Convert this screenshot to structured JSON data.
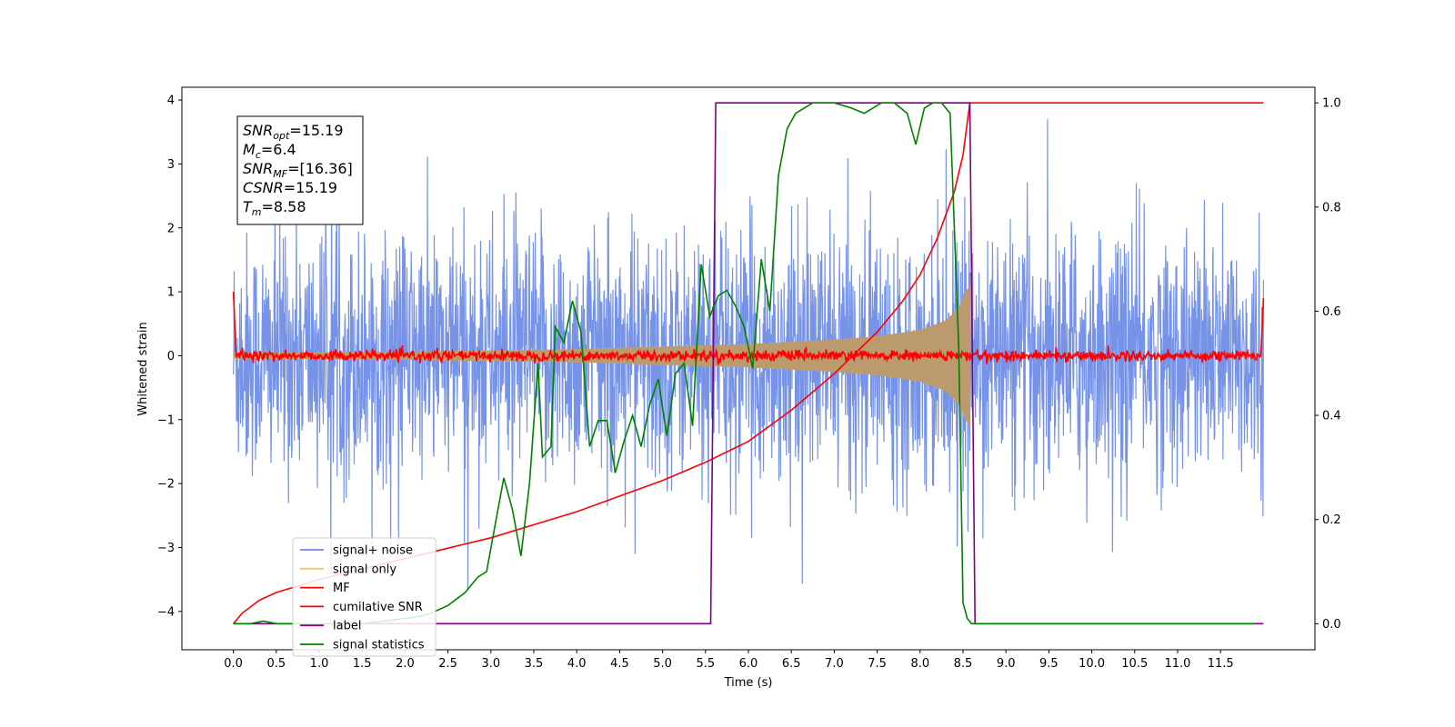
{
  "chart_data": {
    "type": "line",
    "title": "",
    "xlabel": "Time (s)",
    "ylabel": "Whitened strain",
    "ylabel_right": "",
    "xlim": [
      -0.6,
      12.6
    ],
    "ylim": [
      -4.6,
      4.2
    ],
    "ylim_right": [
      -0.05,
      1.03
    ],
    "x_ticks": [
      0.0,
      0.5,
      1.0,
      1.5,
      2.0,
      2.5,
      3.0,
      3.5,
      4.0,
      4.5,
      5.0,
      5.5,
      6.0,
      6.5,
      7.0,
      7.5,
      8.0,
      8.5,
      9.0,
      9.5,
      10.0,
      10.5,
      11.0,
      11.5
    ],
    "x_tick_labels": [
      "0.0",
      "0.5",
      "1.0",
      "1.5",
      "2.0",
      "2.5",
      "3.0",
      "3.5",
      "4.0",
      "4.5",
      "5.0",
      "5.5",
      "6.0",
      "6.5",
      "7.0",
      "7.5",
      "8.0",
      "8.5",
      "9.0",
      "9.5",
      "10.0",
      "10.5",
      "11.0",
      "11.5"
    ],
    "y_ticks": [
      -4,
      -3,
      -2,
      -1,
      0,
      1,
      2,
      3,
      4
    ],
    "y_tick_labels": [
      "−4",
      "−3",
      "−2",
      "−1",
      "0",
      "1",
      "2",
      "3",
      "4"
    ],
    "y_right_ticks": [
      0.0,
      0.2,
      0.4,
      0.6,
      0.8,
      1.0
    ],
    "y_right_tick_labels": [
      "0.0",
      "0.2",
      "0.4",
      "0.6",
      "0.8",
      "1.0"
    ],
    "grid": false,
    "legend_position": "lower-left",
    "annotation": {
      "lines": [
        {
          "sym": "SNR",
          "sub": "opt",
          "value": "=15.19"
        },
        {
          "sym": "M",
          "sub": "c",
          "value": "=6.4"
        },
        {
          "sym": "SNR",
          "sub": "MF",
          "value": "=[16.36]"
        },
        {
          "sym": "CSNR",
          "sub": "",
          "value": "=15.19"
        },
        {
          "sym": "T",
          "sub": "m",
          "value": "=8.58"
        }
      ]
    },
    "series": [
      {
        "name": "signal+ noise",
        "axis": "left",
        "color": "#6a8ae6",
        "description_range": [
          0.0,
          12.0
        ],
        "typical_amplitude": 2.0,
        "peak_amplitude": 3.7
      },
      {
        "name": "signal only",
        "axis": "left",
        "color": "#f5c36a",
        "envelope": {
          "x": [
            0.0,
            2.0,
            4.0,
            5.0,
            6.0,
            7.0,
            7.5,
            8.0,
            8.3,
            8.45,
            8.55,
            8.58
          ],
          "amp": [
            0.04,
            0.06,
            0.1,
            0.14,
            0.18,
            0.25,
            0.3,
            0.4,
            0.55,
            0.75,
            1.05,
            1.1
          ]
        }
      },
      {
        "name": "MF",
        "axis": "left",
        "color": "#ff0000",
        "noise_amplitude": 0.07,
        "x_range": [
          0.0,
          12.0
        ]
      },
      {
        "name": "cumilative SNR",
        "axis": "right",
        "color": "#ff0000",
        "x": [
          0.0,
          0.05,
          0.1,
          0.3,
          0.5,
          1.0,
          1.5,
          2.0,
          2.5,
          3.0,
          3.5,
          4.0,
          4.5,
          5.0,
          5.5,
          6.0,
          6.5,
          7.0,
          7.5,
          7.8,
          8.0,
          8.2,
          8.4,
          8.5,
          8.58,
          12.0
        ],
        "y": [
          0.0,
          0.01,
          0.02,
          0.045,
          0.06,
          0.085,
          0.105,
          0.125,
          0.145,
          0.165,
          0.19,
          0.215,
          0.245,
          0.275,
          0.31,
          0.35,
          0.41,
          0.48,
          0.56,
          0.62,
          0.67,
          0.74,
          0.83,
          0.9,
          1.0,
          1.0
        ]
      },
      {
        "name": "label",
        "axis": "right",
        "color": "#800080",
        "x": [
          0.0,
          5.56,
          5.62,
          8.58,
          8.64,
          12.0
        ],
        "y": [
          0.0,
          0.0,
          1.0,
          1.0,
          0.0,
          0.0
        ]
      },
      {
        "name": "signal statistics",
        "axis": "right",
        "color": "#008000",
        "x": [
          0.0,
          0.2,
          0.35,
          0.5,
          1.0,
          1.5,
          2.0,
          2.2,
          2.3,
          2.5,
          2.7,
          2.85,
          2.95,
          3.05,
          3.15,
          3.25,
          3.35,
          3.45,
          3.55,
          3.6,
          3.7,
          3.75,
          3.85,
          3.95,
          4.05,
          4.15,
          4.25,
          4.35,
          4.45,
          4.55,
          4.65,
          4.75,
          4.85,
          4.95,
          5.05,
          5.15,
          5.25,
          5.35,
          5.45,
          5.55,
          5.65,
          5.75,
          5.85,
          5.95,
          6.05,
          6.15,
          6.25,
          6.35,
          6.45,
          6.55,
          6.65,
          6.75,
          6.85,
          7.0,
          7.2,
          7.35,
          7.45,
          7.55,
          7.7,
          7.85,
          7.95,
          8.05,
          8.15,
          8.25,
          8.35,
          8.45,
          8.5,
          8.55,
          8.6,
          8.65,
          9.0,
          10.0,
          11.0,
          11.9
        ],
        "y": [
          0.0,
          0.0,
          0.005,
          0.0,
          0.0,
          0.0,
          0.01,
          0.015,
          0.02,
          0.035,
          0.06,
          0.09,
          0.1,
          0.19,
          0.28,
          0.22,
          0.13,
          0.27,
          0.5,
          0.32,
          0.34,
          0.57,
          0.54,
          0.62,
          0.56,
          0.34,
          0.39,
          0.39,
          0.29,
          0.35,
          0.4,
          0.34,
          0.42,
          0.47,
          0.36,
          0.48,
          0.5,
          0.38,
          0.69,
          0.59,
          0.63,
          0.64,
          0.61,
          0.57,
          0.49,
          0.7,
          0.6,
          0.86,
          0.95,
          0.98,
          0.99,
          1.0,
          1.0,
          1.0,
          0.99,
          0.98,
          0.99,
          1.0,
          1.0,
          0.98,
          0.92,
          0.99,
          1.0,
          1.0,
          0.98,
          0.53,
          0.04,
          0.01,
          0.0,
          0.0,
          0.0,
          0.0,
          0.0,
          0.0
        ]
      }
    ]
  }
}
